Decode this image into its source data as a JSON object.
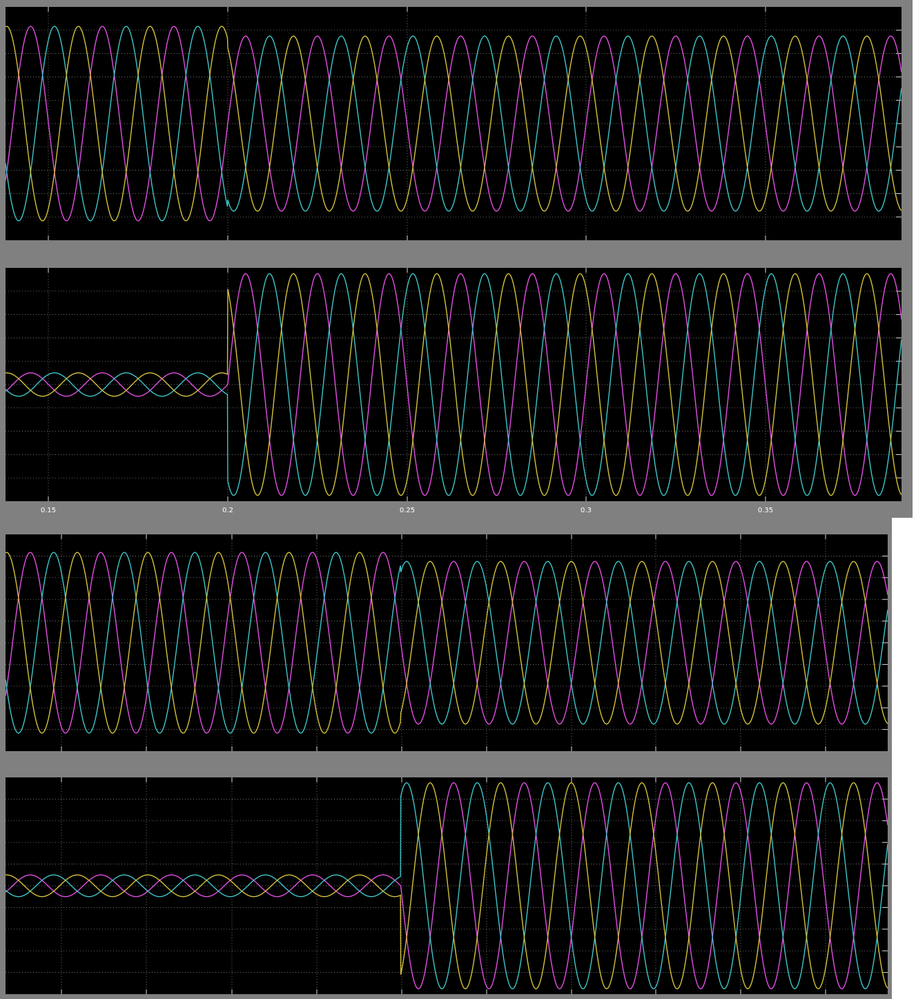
{
  "chart_data": [
    {
      "type": "line",
      "x_ticks": [
        "0.15",
        "0.2",
        "0.25",
        "0.3",
        "0.35"
      ],
      "xlim": [
        0.138,
        0.388
      ],
      "ylim": [
        -1.2,
        1.2
      ],
      "grid": true,
      "event_x": 0.2,
      "colors": [
        "#e34fe3",
        "#3fc6c9",
        "#d4c23c"
      ],
      "series": [
        {
          "color": "#e34fe3",
          "phase_deg": 0
        },
        {
          "color": "#3fc6c9",
          "phase_deg": -120
        },
        {
          "color": "#d4c23c",
          "phase_deg": 120
        }
      ],
      "frequency_hz": 50,
      "panels": [
        {
          "amplitude_before": 1.0,
          "amplitude_after": 0.9
        },
        {
          "amplitude_before": 0.12,
          "amplitude_after": 1.14
        }
      ]
    },
    {
      "type": "line",
      "xlim": [
        0.138,
        0.388
      ],
      "ylim": [
        -1.2,
        1.2
      ],
      "grid": true,
      "event_x": 0.25,
      "colors": [
        "#e34fe3",
        "#3fc6c9",
        "#d4c23c"
      ],
      "series": [
        {
          "color": "#e34fe3",
          "phase_deg": 0
        },
        {
          "color": "#3fc6c9",
          "phase_deg": -120
        },
        {
          "color": "#d4c23c",
          "phase_deg": 120
        }
      ],
      "frequency_hz": 50,
      "panels": [
        {
          "amplitude_before": 1.0,
          "amplitude_after": 0.9
        },
        {
          "amplitude_before": 0.12,
          "amplitude_after": 1.14
        }
      ]
    }
  ]
}
